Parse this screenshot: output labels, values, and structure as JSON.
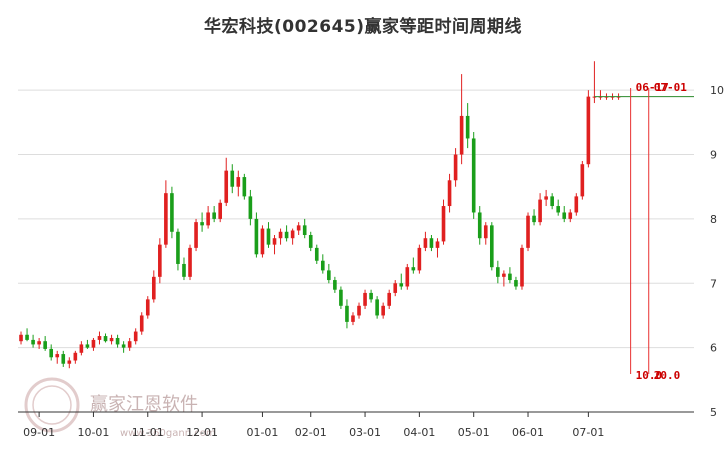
{
  "chart_data": {
    "type": "candlestick",
    "title": "华宏科技(002645)赢家等距时间周期线",
    "xlabel": "",
    "ylabel": "",
    "ylim": [
      5,
      10.5
    ],
    "y_ticks": [
      5,
      6,
      7,
      8,
      9,
      10
    ],
    "y_tick_labels": [
      "5",
      "6",
      "7",
      "8",
      "9",
      "10"
    ],
    "x_ticks": [
      "09-01",
      "10-01",
      "11-01",
      "12-01",
      "01-01",
      "02-01",
      "03-01",
      "04-01",
      "05-01",
      "06-01",
      "07-01"
    ],
    "grid": true,
    "series": [
      {
        "values": [
          [
            6.1,
            6.25,
            6.05,
            6.2
          ],
          [
            6.2,
            6.3,
            6.1,
            6.12
          ],
          [
            6.12,
            6.2,
            6.0,
            6.05
          ],
          [
            6.05,
            6.15,
            5.98,
            6.1
          ],
          [
            6.1,
            6.18,
            5.95,
            5.98
          ],
          [
            5.98,
            6.05,
            5.8,
            5.85
          ],
          [
            5.85,
            5.95,
            5.75,
            5.9
          ],
          [
            5.9,
            5.95,
            5.7,
            5.75
          ],
          [
            5.75,
            5.85,
            5.68,
            5.8
          ],
          [
            5.8,
            5.95,
            5.75,
            5.92
          ],
          [
            5.92,
            6.1,
            5.88,
            6.05
          ],
          [
            6.05,
            6.12,
            5.98,
            6.0
          ],
          [
            6.0,
            6.15,
            5.95,
            6.12
          ],
          [
            6.12,
            6.25,
            6.05,
            6.18
          ],
          [
            6.18,
            6.22,
            6.08,
            6.1
          ],
          [
            6.1,
            6.2,
            6.05,
            6.15
          ],
          [
            6.15,
            6.2,
            6.0,
            6.05
          ],
          [
            6.05,
            6.1,
            5.92,
            6.0
          ],
          [
            6.0,
            6.15,
            5.95,
            6.1
          ],
          [
            6.1,
            6.3,
            6.05,
            6.25
          ],
          [
            6.25,
            6.55,
            6.2,
            6.5
          ],
          [
            6.5,
            6.8,
            6.45,
            6.75
          ],
          [
            6.75,
            7.2,
            6.7,
            7.1
          ],
          [
            7.1,
            7.7,
            7.0,
            7.6
          ],
          [
            7.6,
            8.6,
            7.55,
            8.4
          ],
          [
            8.4,
            8.5,
            7.7,
            7.8
          ],
          [
            7.8,
            7.85,
            7.2,
            7.3
          ],
          [
            7.3,
            7.4,
            7.05,
            7.1
          ],
          [
            7.1,
            7.6,
            7.05,
            7.55
          ],
          [
            7.55,
            8.0,
            7.5,
            7.95
          ],
          [
            7.95,
            8.1,
            7.8,
            7.9
          ],
          [
            7.9,
            8.2,
            7.85,
            8.1
          ],
          [
            8.1,
            8.2,
            7.95,
            8.0
          ],
          [
            8.0,
            8.3,
            7.95,
            8.25
          ],
          [
            8.25,
            8.95,
            8.2,
            8.75
          ],
          [
            8.75,
            8.85,
            8.4,
            8.5
          ],
          [
            8.5,
            8.75,
            8.35,
            8.65
          ],
          [
            8.65,
            8.7,
            8.3,
            8.35
          ],
          [
            8.35,
            8.45,
            7.9,
            8.0
          ],
          [
            8.0,
            8.1,
            7.4,
            7.45
          ],
          [
            7.45,
            7.9,
            7.4,
            7.85
          ],
          [
            7.85,
            7.95,
            7.55,
            7.6
          ],
          [
            7.6,
            7.75,
            7.45,
            7.7
          ],
          [
            7.7,
            7.85,
            7.6,
            7.8
          ],
          [
            7.8,
            7.9,
            7.65,
            7.7
          ],
          [
            7.7,
            7.85,
            7.6,
            7.82
          ],
          [
            7.82,
            7.95,
            7.75,
            7.9
          ],
          [
            7.9,
            8.0,
            7.7,
            7.75
          ],
          [
            7.75,
            7.8,
            7.5,
            7.55
          ],
          [
            7.55,
            7.6,
            7.3,
            7.35
          ],
          [
            7.35,
            7.45,
            7.15,
            7.2
          ],
          [
            7.2,
            7.3,
            7.0,
            7.05
          ],
          [
            7.05,
            7.1,
            6.85,
            6.9
          ],
          [
            6.9,
            6.95,
            6.6,
            6.65
          ],
          [
            6.65,
            6.75,
            6.3,
            6.4
          ],
          [
            6.4,
            6.55,
            6.35,
            6.5
          ],
          [
            6.5,
            6.7,
            6.45,
            6.65
          ],
          [
            6.65,
            6.9,
            6.6,
            6.85
          ],
          [
            6.85,
            6.9,
            6.7,
            6.75
          ],
          [
            6.75,
            6.8,
            6.45,
            6.5
          ],
          [
            6.5,
            6.7,
            6.45,
            6.65
          ],
          [
            6.65,
            6.9,
            6.6,
            6.85
          ],
          [
            6.85,
            7.05,
            6.8,
            7.0
          ],
          [
            7.0,
            7.15,
            6.9,
            6.95
          ],
          [
            6.95,
            7.3,
            6.9,
            7.25
          ],
          [
            7.25,
            7.4,
            7.15,
            7.2
          ],
          [
            7.2,
            7.6,
            7.15,
            7.55
          ],
          [
            7.55,
            7.8,
            7.5,
            7.7
          ],
          [
            7.7,
            7.75,
            7.5,
            7.55
          ],
          [
            7.55,
            7.7,
            7.4,
            7.65
          ],
          [
            7.65,
            8.3,
            7.6,
            8.2
          ],
          [
            8.2,
            8.7,
            8.1,
            8.6
          ],
          [
            8.6,
            9.1,
            8.5,
            9.0
          ],
          [
            9.0,
            10.25,
            8.85,
            9.6
          ],
          [
            9.6,
            9.8,
            9.1,
            9.25
          ],
          [
            9.25,
            9.35,
            8.0,
            8.1
          ],
          [
            8.1,
            8.2,
            7.6,
            7.7
          ],
          [
            7.7,
            7.95,
            7.6,
            7.9
          ],
          [
            7.9,
            7.95,
            7.2,
            7.25
          ],
          [
            7.25,
            7.35,
            7.0,
            7.1
          ],
          [
            7.1,
            7.2,
            6.95,
            7.15
          ],
          [
            7.15,
            7.25,
            7.0,
            7.05
          ],
          [
            7.05,
            7.1,
            6.9,
            6.95
          ],
          [
            6.95,
            7.6,
            6.9,
            7.55
          ],
          [
            7.55,
            8.1,
            7.5,
            8.05
          ],
          [
            8.05,
            8.15,
            7.9,
            7.95
          ],
          [
            7.95,
            8.4,
            7.9,
            8.3
          ],
          [
            8.3,
            8.45,
            8.2,
            8.35
          ],
          [
            8.35,
            8.4,
            8.15,
            8.2
          ],
          [
            8.2,
            8.3,
            8.05,
            8.1
          ],
          [
            8.1,
            8.2,
            7.95,
            8.0
          ],
          [
            8.0,
            8.15,
            7.95,
            8.1
          ],
          [
            8.1,
            8.4,
            8.05,
            8.35
          ],
          [
            8.35,
            8.9,
            8.3,
            8.85
          ],
          [
            8.85,
            10.0,
            8.8,
            9.9
          ],
          [
            9.9,
            10.45,
            9.8,
            9.9
          ],
          [
            9.9,
            10.0,
            9.85,
            9.9
          ],
          [
            9.9,
            9.95,
            9.85,
            9.9
          ],
          [
            9.9,
            9.95,
            9.85,
            9.9
          ],
          [
            9.9,
            9.95,
            9.85,
            9.9
          ]
        ]
      }
    ],
    "annotations": {
      "top_labels": [
        "06-17",
        "07-01"
      ],
      "bottom_labels": [
        "10.0",
        "20.0"
      ]
    },
    "colors": {
      "up": "#e02020",
      "down": "#1a9e1a",
      "cycle_line": "#e83030",
      "price_line": "#2a8a2a",
      "grid": "#dddddd"
    },
    "watermark": {
      "text": "赢家江恩软件",
      "url": "www.360gann.com"
    }
  }
}
